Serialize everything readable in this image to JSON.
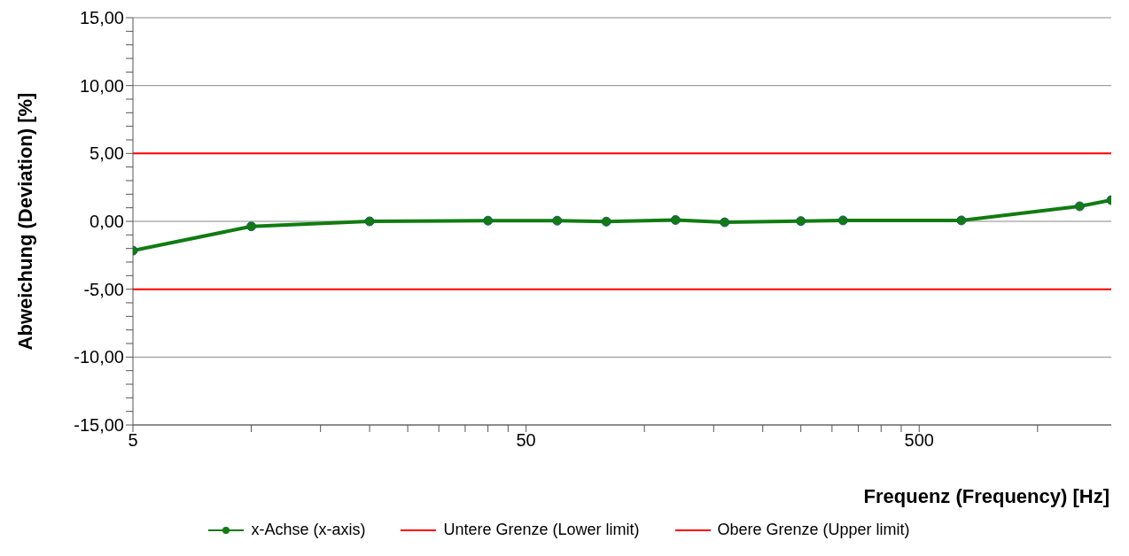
{
  "chart_data": {
    "type": "line",
    "xlabel": "Frequenz (Frequency) [Hz]",
    "ylabel": "Abweichung (Deviation) [%]",
    "log": "x",
    "xlim": [
      5,
      1540
    ],
    "xticks": [
      {
        "value": 5,
        "label": "5"
      },
      {
        "value": 10,
        "label": null
      },
      {
        "value": 15,
        "label": null
      },
      {
        "value": 20,
        "label": null
      },
      {
        "value": 25,
        "label": null
      },
      {
        "value": 30,
        "label": null
      },
      {
        "value": 35,
        "label": null
      },
      {
        "value": 40,
        "label": null
      },
      {
        "value": 45,
        "label": null
      },
      {
        "value": 50,
        "label": "50"
      },
      {
        "value": 100,
        "label": null
      },
      {
        "value": 150,
        "label": null
      },
      {
        "value": 200,
        "label": null
      },
      {
        "value": 250,
        "label": null
      },
      {
        "value": 300,
        "label": null
      },
      {
        "value": 350,
        "label": null
      },
      {
        "value": 400,
        "label": null
      },
      {
        "value": 450,
        "label": null
      },
      {
        "value": 500,
        "label": "500"
      },
      {
        "value": 1000,
        "label": null
      }
    ],
    "ylim": [
      -15,
      15
    ],
    "yticks": [
      {
        "value": -15,
        "label": "-15,00"
      },
      {
        "value": -14,
        "label": null
      },
      {
        "value": -13,
        "label": null
      },
      {
        "value": -12,
        "label": null
      },
      {
        "value": -11,
        "label": null
      },
      {
        "value": -10,
        "label": "-10,00"
      },
      {
        "value": -9,
        "label": null
      },
      {
        "value": -8,
        "label": null
      },
      {
        "value": -7,
        "label": null
      },
      {
        "value": -6,
        "label": null
      },
      {
        "value": -5,
        "label": "-5,00"
      },
      {
        "value": -4,
        "label": null
      },
      {
        "value": -3,
        "label": null
      },
      {
        "value": -2,
        "label": null
      },
      {
        "value": -1,
        "label": null
      },
      {
        "value": 0,
        "label": "0,00"
      },
      {
        "value": 1,
        "label": null
      },
      {
        "value": 2,
        "label": null
      },
      {
        "value": 3,
        "label": null
      },
      {
        "value": 4,
        "label": null
      },
      {
        "value": 5,
        "label": "5,00"
      },
      {
        "value": 6,
        "label": null
      },
      {
        "value": 7,
        "label": null
      },
      {
        "value": 8,
        "label": null
      },
      {
        "value": 9,
        "label": null
      },
      {
        "value": 10,
        "label": "10,00"
      },
      {
        "value": 11,
        "label": null
      },
      {
        "value": 12,
        "label": null
      },
      {
        "value": 13,
        "label": null
      },
      {
        "value": 14,
        "label": null
      },
      {
        "value": 15,
        "label": "15,00"
      }
    ],
    "grid": "y",
    "legend": "bottom",
    "marker": "circle",
    "line_style": "solid",
    "series": [
      {
        "name": "x-Achse (x-axis)",
        "color": "#107c10",
        "x": [
          5,
          10,
          20,
          40,
          60,
          80,
          120,
          160,
          250,
          320,
          640,
          1280,
          1540
        ],
        "values": [
          -2.16,
          -0.37,
          0,
          0.05,
          0.05,
          -0.02,
          0.1,
          -0.07,
          0.02,
          0.07,
          0.07,
          1.11,
          1.56
        ]
      },
      {
        "name": "Untere Grenze (Lower limit)",
        "color": "#ff0000",
        "marker": "none",
        "x": [
          5,
          1540
        ],
        "values": [
          -5,
          -5
        ]
      },
      {
        "name": "Obere Grenze (Upper limit)",
        "color": "#ff0000",
        "marker": "none",
        "x": [
          5,
          1540
        ],
        "values": [
          5,
          5
        ]
      }
    ]
  }
}
